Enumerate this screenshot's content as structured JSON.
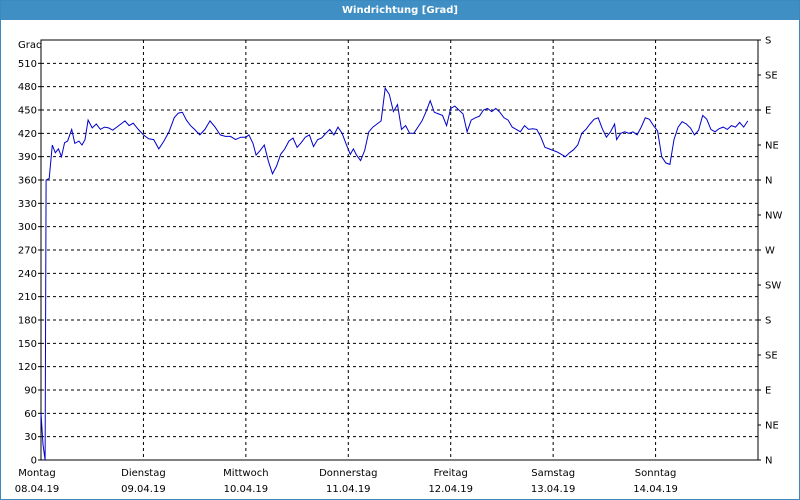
{
  "window": {
    "title": "Windrichtung [Grad]"
  },
  "colors": {
    "accent": "#3f8fc5",
    "line": "#0000cc",
    "grid": "#000000"
  },
  "chart_data": {
    "type": "line",
    "title": "Windrichtung [Grad]",
    "ylabel": "Grad",
    "ylim": [
      0,
      540
    ],
    "yticks": [
      0,
      30,
      60,
      90,
      120,
      150,
      180,
      210,
      240,
      270,
      300,
      330,
      360,
      390,
      420,
      450,
      480,
      510
    ],
    "right_axis_labels": [
      "N",
      "NE",
      "E",
      "SE",
      "S",
      "SW",
      "W",
      "NW",
      "N",
      "NE",
      "E",
      "SE",
      "S"
    ],
    "xlim": [
      0,
      7
    ],
    "x_categories": [
      {
        "day": "Montag",
        "date": "08.04.19"
      },
      {
        "day": "Dienstag",
        "date": "09.04.19"
      },
      {
        "day": "Mittwoch",
        "date": "10.04.19"
      },
      {
        "day": "Donnerstag",
        "date": "11.04.19"
      },
      {
        "day": "Freitag",
        "date": "12.04.19"
      },
      {
        "day": "Samstag",
        "date": "13.04.19"
      },
      {
        "day": "Sonntag",
        "date": "14.04.19"
      }
    ],
    "grid": true,
    "series": [
      {
        "points": [
          [
            0.0,
            60
          ],
          [
            0.02,
            20
          ],
          [
            0.04,
            0
          ],
          [
            0.05,
            360
          ],
          [
            0.08,
            362
          ],
          [
            0.11,
            405
          ],
          [
            0.14,
            395
          ],
          [
            0.17,
            400
          ],
          [
            0.2,
            390
          ],
          [
            0.23,
            408
          ],
          [
            0.26,
            410
          ],
          [
            0.3,
            425
          ],
          [
            0.33,
            407
          ],
          [
            0.37,
            410
          ],
          [
            0.4,
            405
          ],
          [
            0.43,
            412
          ],
          [
            0.46,
            437
          ],
          [
            0.5,
            427
          ],
          [
            0.54,
            432
          ],
          [
            0.58,
            425
          ],
          [
            0.62,
            428
          ],
          [
            0.66,
            427
          ],
          [
            0.7,
            424
          ],
          [
            0.74,
            428
          ],
          [
            0.78,
            432
          ],
          [
            0.82,
            436
          ],
          [
            0.86,
            430
          ],
          [
            0.9,
            433
          ],
          [
            0.95,
            425
          ],
          [
            1.0,
            418
          ],
          [
            1.05,
            413
          ],
          [
            1.1,
            412
          ],
          [
            1.15,
            400
          ],
          [
            1.2,
            410
          ],
          [
            1.25,
            422
          ],
          [
            1.3,
            440
          ],
          [
            1.34,
            446
          ],
          [
            1.38,
            447
          ],
          [
            1.42,
            437
          ],
          [
            1.46,
            430
          ],
          [
            1.5,
            425
          ],
          [
            1.55,
            418
          ],
          [
            1.6,
            425
          ],
          [
            1.65,
            436
          ],
          [
            1.7,
            428
          ],
          [
            1.75,
            418
          ],
          [
            1.8,
            416
          ],
          [
            1.85,
            416
          ],
          [
            1.9,
            412
          ],
          [
            1.95,
            415
          ],
          [
            2.0,
            415
          ],
          [
            2.03,
            418
          ],
          [
            2.07,
            407
          ],
          [
            2.1,
            392
          ],
          [
            2.14,
            398
          ],
          [
            2.18,
            405
          ],
          [
            2.22,
            384
          ],
          [
            2.26,
            368
          ],
          [
            2.3,
            378
          ],
          [
            2.34,
            393
          ],
          [
            2.38,
            400
          ],
          [
            2.42,
            410
          ],
          [
            2.46,
            414
          ],
          [
            2.5,
            402
          ],
          [
            2.54,
            408
          ],
          [
            2.58,
            415
          ],
          [
            2.62,
            418
          ],
          [
            2.66,
            403
          ],
          [
            2.7,
            412
          ],
          [
            2.74,
            414
          ],
          [
            2.78,
            420
          ],
          [
            2.82,
            425
          ],
          [
            2.86,
            418
          ],
          [
            2.9,
            428
          ],
          [
            2.94,
            420
          ],
          [
            2.98,
            406
          ],
          [
            3.02,
            393
          ],
          [
            3.05,
            400
          ],
          [
            3.08,
            392
          ],
          [
            3.12,
            385
          ],
          [
            3.16,
            398
          ],
          [
            3.2,
            422
          ],
          [
            3.24,
            428
          ],
          [
            3.28,
            432
          ],
          [
            3.32,
            436
          ],
          [
            3.36,
            478
          ],
          [
            3.4,
            470
          ],
          [
            3.44,
            448
          ],
          [
            3.48,
            457
          ],
          [
            3.52,
            425
          ],
          [
            3.56,
            430
          ],
          [
            3.6,
            420
          ],
          [
            3.64,
            420
          ],
          [
            3.68,
            428
          ],
          [
            3.72,
            436
          ],
          [
            3.76,
            448
          ],
          [
            3.8,
            462
          ],
          [
            3.84,
            447
          ],
          [
            3.88,
            445
          ],
          [
            3.92,
            443
          ],
          [
            3.96,
            430
          ],
          [
            4.0,
            452
          ],
          [
            4.04,
            455
          ],
          [
            4.08,
            450
          ],
          [
            4.12,
            445
          ],
          [
            4.16,
            422
          ],
          [
            4.2,
            437
          ],
          [
            4.24,
            440
          ],
          [
            4.28,
            442
          ],
          [
            4.32,
            450
          ],
          [
            4.36,
            452
          ],
          [
            4.4,
            448
          ],
          [
            4.44,
            452
          ],
          [
            4.48,
            447
          ],
          [
            4.52,
            440
          ],
          [
            4.56,
            437
          ],
          [
            4.6,
            428
          ],
          [
            4.64,
            425
          ],
          [
            4.68,
            422
          ],
          [
            4.72,
            430
          ],
          [
            4.76,
            425
          ],
          [
            4.8,
            426
          ],
          [
            4.84,
            425
          ],
          [
            4.88,
            415
          ],
          [
            4.92,
            402
          ],
          [
            4.96,
            400
          ],
          [
            5.0,
            398
          ],
          [
            5.04,
            396
          ],
          [
            5.08,
            393
          ],
          [
            5.12,
            390
          ],
          [
            5.16,
            395
          ],
          [
            5.2,
            399
          ],
          [
            5.24,
            405
          ],
          [
            5.28,
            420
          ],
          [
            5.32,
            425
          ],
          [
            5.36,
            432
          ],
          [
            5.4,
            438
          ],
          [
            5.44,
            440
          ],
          [
            5.48,
            426
          ],
          [
            5.52,
            415
          ],
          [
            5.56,
            422
          ],
          [
            5.6,
            432
          ],
          [
            5.62,
            412
          ],
          [
            5.66,
            420
          ],
          [
            5.7,
            422
          ],
          [
            5.74,
            420
          ],
          [
            5.78,
            422
          ],
          [
            5.82,
            418
          ],
          [
            5.86,
            428
          ],
          [
            5.9,
            440
          ],
          [
            5.94,
            438
          ],
          [
            5.98,
            430
          ],
          [
            6.02,
            423
          ],
          [
            6.06,
            390
          ],
          [
            6.1,
            382
          ],
          [
            6.14,
            380
          ],
          [
            6.18,
            412
          ],
          [
            6.22,
            428
          ],
          [
            6.26,
            435
          ],
          [
            6.3,
            432
          ],
          [
            6.34,
            427
          ],
          [
            6.38,
            418
          ],
          [
            6.42,
            424
          ],
          [
            6.46,
            443
          ],
          [
            6.5,
            438
          ],
          [
            6.54,
            425
          ],
          [
            6.58,
            422
          ],
          [
            6.62,
            426
          ],
          [
            6.66,
            428
          ],
          [
            6.7,
            425
          ],
          [
            6.74,
            430
          ],
          [
            6.78,
            428
          ],
          [
            6.82,
            434
          ],
          [
            6.86,
            428
          ],
          [
            6.9,
            436
          ]
        ]
      }
    ]
  }
}
